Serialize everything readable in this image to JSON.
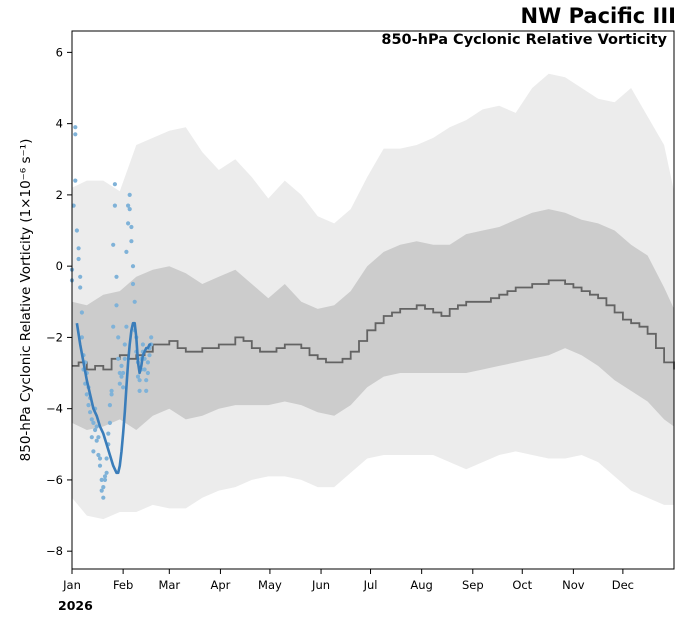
{
  "header": {
    "title": "NW Pacific III",
    "subtitle": "850-hPa Cyclonic Relative Vorticity"
  },
  "chart_data": {
    "type": "line",
    "title": "NW Pacific III",
    "subtitle": "850-hPa Cyclonic Relative Vorticity",
    "ylabel": "850-hPa Cyclonic Relative Vorticity (1×10⁻⁶ s⁻¹)",
    "xlabel": "",
    "year_label": "2026",
    "x_unit": "day of year",
    "xlim": [
      1,
      366
    ],
    "ylim": [
      -8.5,
      6.6
    ],
    "yticks": [
      -8,
      -6,
      -4,
      -2,
      0,
      2,
      4,
      6
    ],
    "month_ticks": [
      {
        "label": "Jan",
        "day": 1
      },
      {
        "label": "Feb",
        "day": 32
      },
      {
        "label": "Mar",
        "day": 60
      },
      {
        "label": "Apr",
        "day": 91
      },
      {
        "label": "May",
        "day": 121
      },
      {
        "label": "Jun",
        "day": 152
      },
      {
        "label": "Jul",
        "day": 182
      },
      {
        "label": "Aug",
        "day": 213
      },
      {
        "label": "Sep",
        "day": 244
      },
      {
        "label": "Oct",
        "day": 274
      },
      {
        "label": "Nov",
        "day": 305
      },
      {
        "label": "Dec",
        "day": 335
      }
    ],
    "grid": false,
    "colors": {
      "outer_band": "#ececec",
      "inner_band": "#cccccc",
      "climatology": "#636363",
      "observed_line": "#3a7dba",
      "observed_points": "#7fb2d8"
    },
    "series": [
      {
        "role": "outer_band",
        "x": [
          1,
          10,
          20,
          30,
          40,
          50,
          60,
          70,
          80,
          90,
          100,
          110,
          120,
          130,
          140,
          150,
          160,
          170,
          180,
          190,
          200,
          210,
          220,
          230,
          240,
          250,
          260,
          270,
          280,
          290,
          300,
          310,
          320,
          330,
          340,
          350,
          360,
          366
        ],
        "upper": [
          2.2,
          2.4,
          2.4,
          2.1,
          3.4,
          3.6,
          3.8,
          3.9,
          3.2,
          2.7,
          3.0,
          2.5,
          1.9,
          2.4,
          2.0,
          1.4,
          1.2,
          1.6,
          2.5,
          3.3,
          3.3,
          3.4,
          3.6,
          3.9,
          4.1,
          4.4,
          4.5,
          4.3,
          5.0,
          5.4,
          5.3,
          5.0,
          4.7,
          4.6,
          5.0,
          4.2,
          3.4,
          2.1
        ],
        "lower": [
          -6.5,
          -7.0,
          -7.1,
          -6.9,
          -6.9,
          -6.7,
          -6.8,
          -6.8,
          -6.5,
          -6.3,
          -6.2,
          -6.0,
          -5.9,
          -5.9,
          -6.0,
          -6.2,
          -6.2,
          -5.8,
          -5.4,
          -5.3,
          -5.3,
          -5.3,
          -5.3,
          -5.5,
          -5.7,
          -5.5,
          -5.3,
          -5.2,
          -5.3,
          -5.4,
          -5.4,
          -5.3,
          -5.5,
          -5.9,
          -6.3,
          -6.5,
          -6.7,
          -6.7
        ]
      },
      {
        "role": "inner_band",
        "x": [
          1,
          10,
          20,
          30,
          40,
          50,
          60,
          70,
          80,
          90,
          100,
          110,
          120,
          130,
          140,
          150,
          160,
          170,
          180,
          190,
          200,
          210,
          220,
          230,
          240,
          250,
          260,
          270,
          280,
          290,
          300,
          310,
          320,
          330,
          340,
          350,
          360,
          366
        ],
        "upper": [
          -1.0,
          -1.1,
          -0.8,
          -0.7,
          -0.3,
          -0.1,
          0.0,
          -0.2,
          -0.5,
          -0.3,
          -0.1,
          -0.5,
          -0.9,
          -0.5,
          -1.0,
          -1.2,
          -1.1,
          -0.7,
          0.0,
          0.4,
          0.6,
          0.7,
          0.6,
          0.6,
          0.9,
          1.0,
          1.1,
          1.3,
          1.5,
          1.6,
          1.5,
          1.3,
          1.2,
          1.0,
          0.6,
          0.3,
          -0.6,
          -1.2
        ],
        "lower": [
          -4.4,
          -4.6,
          -4.5,
          -4.3,
          -4.6,
          -4.2,
          -4.0,
          -4.3,
          -4.2,
          -4.0,
          -3.9,
          -3.9,
          -3.9,
          -3.8,
          -3.9,
          -4.1,
          -4.2,
          -3.9,
          -3.4,
          -3.1,
          -3.0,
          -3.0,
          -3.0,
          -3.0,
          -3.0,
          -2.9,
          -2.8,
          -2.7,
          -2.6,
          -2.5,
          -2.3,
          -2.5,
          -2.8,
          -3.2,
          -3.5,
          -3.8,
          -4.3,
          -4.5
        ]
      },
      {
        "role": "climatology_median",
        "x": [
          1,
          5,
          10,
          15,
          20,
          25,
          30,
          35,
          40,
          45,
          50,
          55,
          60,
          65,
          70,
          75,
          80,
          85,
          90,
          95,
          100,
          105,
          110,
          115,
          120,
          125,
          130,
          135,
          140,
          145,
          150,
          155,
          160,
          165,
          170,
          175,
          180,
          185,
          190,
          195,
          200,
          205,
          210,
          215,
          220,
          225,
          230,
          235,
          240,
          245,
          250,
          255,
          260,
          265,
          270,
          275,
          280,
          285,
          290,
          295,
          300,
          305,
          310,
          315,
          320,
          325,
          330,
          335,
          340,
          345,
          350,
          355,
          360,
          366
        ],
        "values": [
          -2.8,
          -2.7,
          -2.9,
          -2.8,
          -2.9,
          -2.6,
          -2.5,
          -2.6,
          -2.5,
          -2.4,
          -2.2,
          -2.2,
          -2.1,
          -2.3,
          -2.4,
          -2.4,
          -2.3,
          -2.3,
          -2.2,
          -2.2,
          -2.0,
          -2.1,
          -2.3,
          -2.4,
          -2.4,
          -2.3,
          -2.2,
          -2.2,
          -2.3,
          -2.5,
          -2.6,
          -2.7,
          -2.7,
          -2.6,
          -2.4,
          -2.1,
          -1.8,
          -1.6,
          -1.4,
          -1.3,
          -1.2,
          -1.2,
          -1.1,
          -1.2,
          -1.3,
          -1.4,
          -1.2,
          -1.1,
          -1.0,
          -1.0,
          -1.0,
          -0.9,
          -0.8,
          -0.7,
          -0.6,
          -0.6,
          -0.5,
          -0.5,
          -0.4,
          -0.4,
          -0.5,
          -0.6,
          -0.7,
          -0.8,
          -0.9,
          -1.1,
          -1.3,
          -1.5,
          -1.6,
          -1.7,
          -1.9,
          -2.3,
          -2.7,
          -2.9
        ]
      },
      {
        "role": "observed_smoothed",
        "x": [
          4,
          6,
          8,
          10,
          12,
          14,
          16,
          18,
          20,
          22,
          24,
          26,
          28,
          29,
          30,
          31,
          32,
          33,
          34,
          35,
          36,
          37,
          38,
          39,
          40,
          41,
          42,
          43,
          44,
          45,
          46,
          47,
          48,
          49
        ],
        "values": [
          -1.6,
          -2.2,
          -2.7,
          -3.2,
          -3.6,
          -4.0,
          -4.2,
          -4.5,
          -4.7,
          -5.0,
          -5.3,
          -5.6,
          -5.8,
          -5.8,
          -5.6,
          -5.2,
          -4.7,
          -4.1,
          -3.4,
          -2.7,
          -2.2,
          -1.8,
          -1.6,
          -1.6,
          -2.0,
          -2.7,
          -3.0,
          -2.8,
          -2.5,
          -2.4,
          -2.3,
          -2.3,
          -2.2,
          -2.2
        ]
      },
      {
        "role": "observed_daily",
        "x": [
          1,
          1,
          2,
          3,
          3,
          3,
          4,
          5,
          5,
          6,
          6,
          7,
          7,
          8,
          8,
          9,
          9,
          10,
          10,
          11,
          11,
          12,
          12,
          13,
          13,
          14,
          14,
          15,
          15,
          16,
          16,
          17,
          17,
          18,
          18,
          19,
          19,
          20,
          20,
          21,
          21,
          22,
          22,
          23,
          23,
          24,
          24,
          25,
          25,
          26,
          26,
          27,
          27,
          28,
          28,
          29,
          29,
          30,
          30,
          31,
          31,
          32,
          32,
          33,
          33,
          34,
          34,
          35,
          35,
          36,
          36,
          37,
          37,
          38,
          38,
          39,
          39,
          40,
          40,
          41,
          41,
          42,
          42,
          43,
          43,
          44,
          44,
          45,
          45,
          46,
          46,
          47,
          47,
          48,
          48,
          49,
          49
        ],
        "values": [
          -0.1,
          -0.4,
          1.7,
          2.4,
          3.7,
          3.9,
          1.0,
          0.5,
          0.2,
          -0.3,
          -0.6,
          -1.3,
          -2.0,
          -2.5,
          -2.9,
          -3.3,
          -2.7,
          -3.0,
          -3.6,
          -3.9,
          -3.4,
          -4.1,
          -3.7,
          -4.8,
          -4.3,
          -5.2,
          -4.4,
          -4.6,
          -4.0,
          -4.9,
          -4.5,
          -5.3,
          -4.8,
          -5.6,
          -5.4,
          -6.0,
          -6.3,
          -6.5,
          -6.2,
          -5.9,
          -6.0,
          -5.8,
          -5.4,
          -5.0,
          -4.7,
          -4.4,
          -3.9,
          -3.6,
          -3.5,
          -1.7,
          0.6,
          2.3,
          1.7,
          -0.3,
          -1.1,
          -2.0,
          -2.6,
          -3.0,
          -3.3,
          -2.8,
          -3.1,
          -3.4,
          -3.0,
          -2.6,
          -2.2,
          -1.7,
          0.4,
          1.2,
          1.7,
          2.0,
          1.6,
          1.1,
          0.7,
          0.0,
          -0.5,
          -1.0,
          -1.8,
          -2.0,
          -2.4,
          -2.7,
          -3.1,
          -3.5,
          -3.2,
          -2.9,
          -2.6,
          -2.4,
          -2.2,
          -2.6,
          -2.9,
          -3.2,
          -3.5,
          -3.0,
          -2.7,
          -2.5,
          -2.3,
          -2.2,
          -2.0
        ]
      }
    ]
  }
}
